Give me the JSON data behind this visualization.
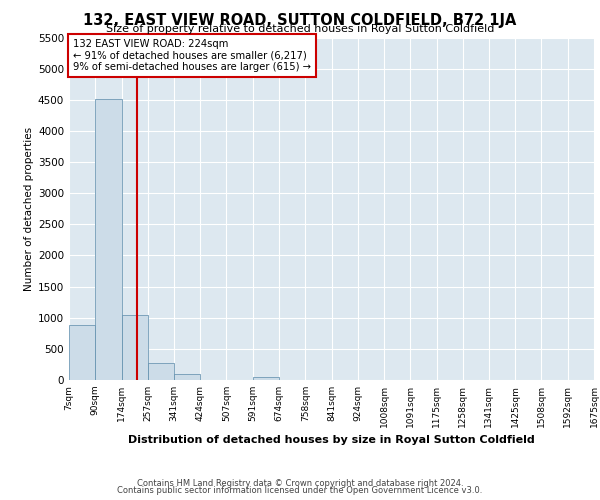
{
  "title": "132, EAST VIEW ROAD, SUTTON COLDFIELD, B72 1JA",
  "subtitle": "Size of property relative to detached houses in Royal Sutton Coldfield",
  "xlabel": "Distribution of detached houses by size in Royal Sutton Coldfield",
  "ylabel": "Number of detached properties",
  "footer_line1": "Contains HM Land Registry data © Crown copyright and database right 2024.",
  "footer_line2": "Contains public sector information licensed under the Open Government Licence v3.0.",
  "annotation_line1": "132 EAST VIEW ROAD: 224sqm",
  "annotation_line2": "← 91% of detached houses are smaller (6,217)",
  "annotation_line3": "9% of semi-detached houses are larger (615) →",
  "property_size": 224,
  "bar_color": "#ccdce8",
  "bar_edge_color": "#5a8aaa",
  "indicator_color": "#cc0000",
  "background_color": "#dde8f0",
  "annotation_box_color": "#ffffff",
  "annotation_border_color": "#cc0000",
  "ylim": [
    0,
    5500
  ],
  "yticks": [
    0,
    500,
    1000,
    1500,
    2000,
    2500,
    3000,
    3500,
    4000,
    4500,
    5000,
    5500
  ],
  "bin_edges": [
    7,
    90,
    174,
    257,
    341,
    424,
    507,
    591,
    674,
    758,
    841,
    924,
    1008,
    1091,
    1175,
    1258,
    1341,
    1425,
    1508,
    1592,
    1675
  ],
  "bin_labels": [
    "7sqm",
    "90sqm",
    "174sqm",
    "257sqm",
    "341sqm",
    "424sqm",
    "507sqm",
    "591sqm",
    "674sqm",
    "758sqm",
    "841sqm",
    "924sqm",
    "1008sqm",
    "1091sqm",
    "1175sqm",
    "1258sqm",
    "1341sqm",
    "1425sqm",
    "1508sqm",
    "1592sqm",
    "1675sqm"
  ],
  "bar_values": [
    880,
    4520,
    1050,
    265,
    95,
    0,
    0,
    55,
    0,
    0,
    0,
    0,
    0,
    0,
    0,
    0,
    0,
    0,
    0,
    0
  ]
}
